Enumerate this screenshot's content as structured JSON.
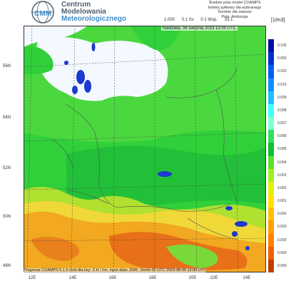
{
  "header": {
    "org_line1": "Centrum",
    "org_line2": "Modelowania",
    "org_line3": "Meteorologicznego",
    "info_lines": [
      "Średnie pola model COAMPS",
      "Indeks pyłkowy dla wybranego",
      "Średnie dla zawsze",
      "Pole: Ambrozja"
    ],
    "scale_values": [
      "1.000",
      "0.1 Sv",
      "0.1 Wsp.",
      "33.1"
    ],
    "unit": "[1/m3]"
  },
  "map": {
    "title": "Niedziela, 06 sierpnia 2023 12:00 UTC",
    "bottom_note": "Prognoza COAMPS 5.1.h   Grid dla key: Z.H / Inn. input data: 2006.   Strefa 00 UTC 2023-08-06 12:00 UTC",
    "x_labels": [
      "12E",
      "14E",
      "16E",
      "18E",
      "20E",
      "22E",
      "24E"
    ],
    "y_labels": [
      "56N",
      "54N",
      "52N",
      "50N",
      "48N"
    ]
  },
  "legend": {
    "labels": [
      "0.100",
      "0.050",
      "0.020",
      "0.010",
      "0.009",
      "0.008",
      "0.007",
      "0.006",
      "0.005",
      "0.004",
      "0.003",
      "0.002",
      "0.001",
      "0.000",
      "0.000",
      "0.000",
      "0.000",
      "0.000"
    ],
    "colors": [
      "#0010a0",
      "#0030d0",
      "#0060f0",
      "#1090ff",
      "#20c0ff",
      "#40ffff",
      "#80ffd0",
      "#30e060",
      "#10c030",
      "#60e030",
      "#a0f020",
      "#e0f010",
      "#ffe000",
      "#ffc000",
      "#ffa000",
      "#ff8000",
      "#f06000",
      "#c04000"
    ]
  },
  "colors": {
    "land_low": "#22c83a",
    "land_mid": "#5de03a",
    "land_high": "#e8d83a",
    "mountain": "#f0a020",
    "mountain_high": "#e87018",
    "sea": "#f4f8ff",
    "blob": "#1a3ad0"
  }
}
